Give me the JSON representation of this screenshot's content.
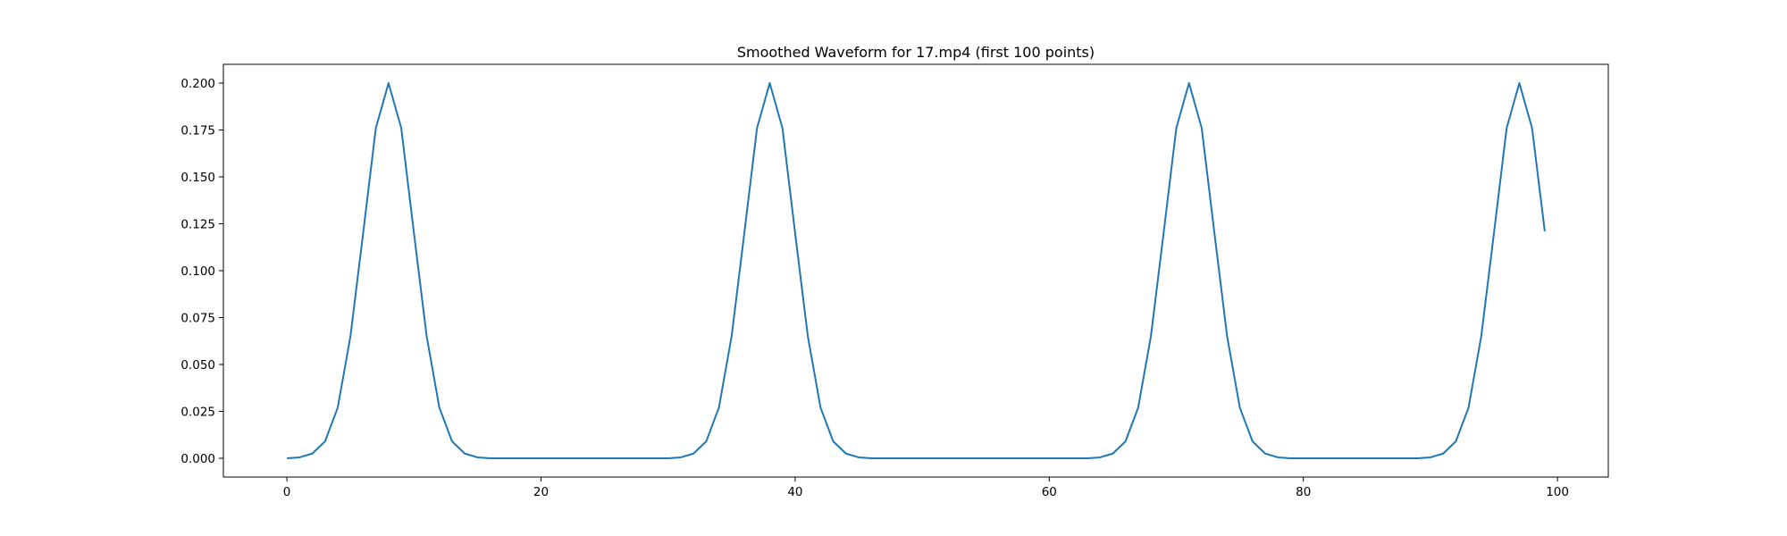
{
  "chart_data": {
    "type": "line",
    "title": "Smoothed Waveform for 17.mp4 (first 100 points)",
    "xlabel": "",
    "ylabel": "",
    "xlim": [
      -5,
      104
    ],
    "ylim": [
      -0.01,
      0.21
    ],
    "x_ticks": [
      0,
      20,
      40,
      60,
      80,
      100
    ],
    "x_tick_labels": [
      "0",
      "20",
      "40",
      "60",
      "80",
      "100"
    ],
    "y_ticks": [
      0.0,
      0.025,
      0.05,
      0.075,
      0.1,
      0.125,
      0.15,
      0.175,
      0.2
    ],
    "y_tick_labels": [
      "0.000",
      "0.025",
      "0.050",
      "0.075",
      "0.100",
      "0.125",
      "0.150",
      "0.175",
      "0.200"
    ],
    "grid": false,
    "legend": "none",
    "series": [
      {
        "color": "#1f77b4",
        "x": [
          0,
          1,
          2,
          3,
          4,
          5,
          6,
          7,
          8,
          9,
          10,
          11,
          12,
          13,
          14,
          15,
          16,
          17,
          18,
          19,
          20,
          21,
          22,
          23,
          24,
          25,
          26,
          27,
          28,
          29,
          30,
          31,
          32,
          33,
          34,
          35,
          36,
          37,
          38,
          39,
          40,
          41,
          42,
          43,
          44,
          45,
          46,
          47,
          48,
          49,
          50,
          51,
          52,
          53,
          54,
          55,
          56,
          57,
          58,
          59,
          60,
          61,
          62,
          63,
          64,
          65,
          66,
          67,
          68,
          69,
          70,
          71,
          72,
          73,
          74,
          75,
          76,
          77,
          78,
          79,
          80,
          81,
          82,
          83,
          84,
          85,
          86,
          87,
          88,
          89,
          90,
          91,
          92,
          93,
          94,
          95,
          96,
          97,
          98,
          99
        ],
        "y": [
          0.0,
          0.0005,
          0.0025,
          0.009,
          0.027,
          0.065,
          0.12,
          0.176,
          0.2,
          0.176,
          0.12,
          0.065,
          0.027,
          0.009,
          0.0025,
          0.0005,
          0.0,
          0.0,
          0.0,
          0.0,
          0.0,
          0.0,
          0.0,
          0.0,
          0.0,
          0.0,
          0.0,
          0.0,
          0.0,
          0.0,
          0.0,
          0.0005,
          0.0025,
          0.009,
          0.027,
          0.065,
          0.12,
          0.176,
          0.2,
          0.176,
          0.12,
          0.065,
          0.027,
          0.009,
          0.0025,
          0.0005,
          0.0,
          0.0,
          0.0,
          0.0,
          0.0,
          0.0,
          0.0,
          0.0,
          0.0,
          0.0,
          0.0,
          0.0,
          0.0,
          0.0,
          0.0,
          0.0,
          0.0,
          0.0,
          0.0005,
          0.0025,
          0.009,
          0.027,
          0.065,
          0.12,
          0.176,
          0.2,
          0.176,
          0.12,
          0.065,
          0.027,
          0.009,
          0.0025,
          0.0005,
          0.0,
          0.0,
          0.0,
          0.0,
          0.0,
          0.0,
          0.0,
          0.0,
          0.0,
          0.0,
          0.0,
          0.0005,
          0.0025,
          0.009,
          0.027,
          0.065,
          0.12,
          0.176,
          0.2,
          0.176,
          0.121
        ]
      }
    ]
  }
}
